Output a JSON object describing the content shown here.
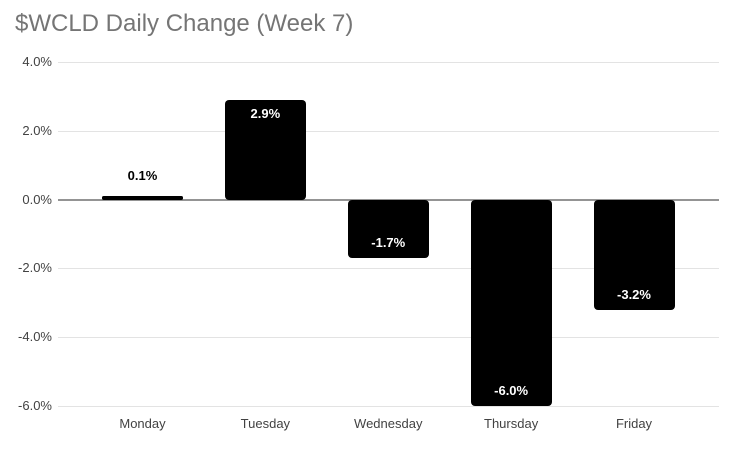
{
  "chart_data": {
    "type": "bar",
    "title": "$WCLD Daily Change (Week 7)",
    "categories": [
      "Monday",
      "Tuesday",
      "Wednesday",
      "Thursday",
      "Friday"
    ],
    "values": [
      0.1,
      2.9,
      -1.7,
      -6.0,
      -3.2
    ],
    "bar_labels": [
      "0.1%",
      "2.9%",
      "-1.7%",
      "-6.0%",
      "-3.2%"
    ],
    "xlabel": "",
    "ylabel": "",
    "ylim": [
      -6.0,
      4.0
    ],
    "yticks": [
      4.0,
      2.0,
      0.0,
      -2.0,
      -4.0,
      -6.0
    ],
    "ytick_labels": [
      "4.0%",
      "2.0%",
      "0.0%",
      "-2.0%",
      "-4.0%",
      "-6.0%"
    ],
    "grid": true,
    "legend": "none",
    "colors": {
      "bar": "#000000",
      "title": "#757575",
      "axis_label": "#424242",
      "gridline": "#e3e3e3",
      "zero_line": "#949494",
      "label_inside": "#ffffff",
      "label_outside": "#000000",
      "background": "#ffffff"
    }
  }
}
